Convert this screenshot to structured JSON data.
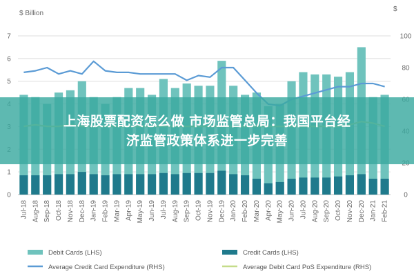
{
  "chart_data": {
    "type": "bar",
    "unit_left": "$ Billion",
    "unit_right": "$",
    "categories": [
      "Jul-18",
      "Aug-18",
      "Sep-18",
      "Oct-18",
      "Nov-18",
      "Dec-18",
      "Jan-19",
      "Feb-19",
      "Mar-19",
      "Apr-19",
      "May-19",
      "Jun-19",
      "Jul-19",
      "Aug-19",
      "Sep-19",
      "Oct-19",
      "Nov-19",
      "Dec-19",
      "Jan-20",
      "Feb-20",
      "Mar-20",
      "Apr-20",
      "May-20",
      "Jun-20",
      "Jul-20",
      "Aug-20",
      "Sep-20",
      "Oct-20",
      "Nov-20",
      "Dec-20",
      "Jan-21",
      "Feb-21"
    ],
    "ylim_left": [
      0,
      7
    ],
    "yticks_left": [
      0,
      1,
      2,
      3,
      4,
      5,
      6,
      7
    ],
    "ylim_right": [
      0,
      100
    ],
    "yticks_right": [
      0,
      20,
      40,
      60,
      80,
      100
    ],
    "series": [
      {
        "name": "Debit Cards (LHS)",
        "kind": "bar",
        "axis": "left",
        "color": "#6fc3bd",
        "values": [
          4.4,
          4.3,
          4.0,
          4.5,
          4.6,
          5.0,
          4.3,
          4.0,
          4.3,
          4.7,
          4.7,
          4.4,
          5.1,
          4.7,
          4.9,
          4.8,
          4.8,
          5.9,
          4.8,
          4.4,
          4.5,
          3.9,
          4.0,
          5.0,
          5.4,
          5.3,
          5.3,
          5.2,
          5.4,
          6.5,
          4.3,
          4.4
        ]
      },
      {
        "name": "Credit Cards (LHS)",
        "kind": "bar",
        "axis": "left",
        "color": "#1f7a8c",
        "values": [
          0.85,
          0.85,
          0.85,
          0.9,
          0.9,
          1.0,
          0.9,
          0.85,
          0.9,
          0.9,
          0.9,
          0.9,
          0.95,
          0.9,
          0.95,
          0.95,
          0.95,
          1.05,
          0.9,
          0.85,
          0.7,
          0.5,
          0.55,
          0.7,
          0.75,
          0.75,
          0.75,
          0.8,
          0.85,
          0.9,
          0.7,
          0.7
        ]
      },
      {
        "name": "Average Credit Card Expenditure (RHS)",
        "kind": "line",
        "axis": "right",
        "color": "#5b9bd5",
        "values": [
          77,
          78,
          80,
          76,
          78,
          76,
          84,
          78,
          77,
          77,
          76,
          76,
          76,
          76,
          72,
          75,
          74,
          80,
          80,
          72,
          64,
          57,
          56,
          60,
          62,
          64,
          66,
          68,
          68,
          70,
          70,
          68
        ]
      },
      {
        "name": "Average Debit Card PoS Expenditure (RHS)",
        "kind": "line",
        "axis": "right",
        "color": "#c5dc8a",
        "values": [
          43,
          44,
          43,
          43,
          44,
          43,
          43,
          43,
          43,
          43,
          43,
          43,
          43,
          43,
          43,
          43,
          43,
          43,
          43,
          43,
          43,
          43,
          43,
          43,
          43,
          43,
          43,
          43,
          44,
          46,
          45,
          43
        ]
      }
    ]
  },
  "banner": {
    "line1": "上海股票配资怎么做 市场监管总局：我国平台经",
    "line2": "济监管政策体系进一步完善"
  }
}
